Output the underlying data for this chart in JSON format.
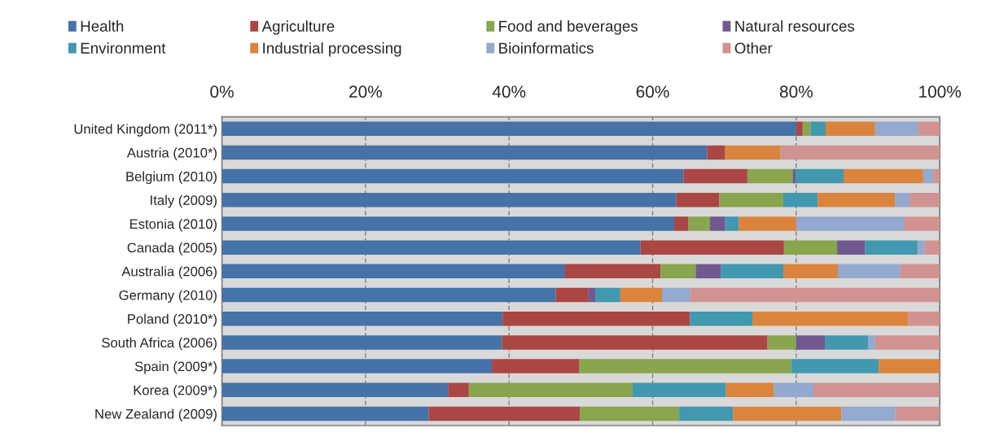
{
  "chart_data": {
    "type": "bar",
    "orientation": "horizontal",
    "stacked": true,
    "categories": [
      "United Kingdom (2011*)",
      "Austria (2010*)",
      "Belgium (2010)",
      "Italy (2009)",
      "Estonia (2010)",
      "Canada (2005)",
      "Australia (2006)",
      "Germany (2010)",
      "Poland (2010*)",
      "South Africa (2006)",
      "Spain (2009*)",
      "Korea (2009*)",
      "New Zealand (2009)"
    ],
    "series": [
      {
        "name": "Health",
        "color": "#4572a7",
        "values": [
          80.0,
          67.6,
          64.3,
          63.3,
          63.0,
          58.3,
          47.8,
          46.5,
          39.1,
          39.0,
          37.6,
          31.5,
          28.8
        ]
      },
      {
        "name": "Agriculture",
        "color": "#aa4643",
        "values": [
          0.9,
          2.5,
          8.9,
          6.0,
          2.0,
          20.0,
          13.3,
          4.5,
          26.1,
          37.0,
          12.2,
          2.9,
          21.1
        ]
      },
      {
        "name": "Food and beverages",
        "color": "#89a54e",
        "values": [
          1.1,
          0,
          6.3,
          8.9,
          3.0,
          7.4,
          4.9,
          0,
          0,
          4.0,
          29.5,
          22.8,
          13.8
        ]
      },
      {
        "name": "Natural resources",
        "color": "#71588f",
        "values": [
          0,
          0,
          0.4,
          0,
          2.1,
          3.9,
          3.5,
          1.0,
          0,
          4.0,
          0,
          0,
          0
        ]
      },
      {
        "name": "Environment",
        "color": "#4198af",
        "values": [
          2.1,
          0,
          6.7,
          4.8,
          1.9,
          7.3,
          8.7,
          3.5,
          8.7,
          6.0,
          12.2,
          13.0,
          7.5
        ]
      },
      {
        "name": "Industrial processing",
        "color": "#db843d",
        "values": [
          6.9,
          7.7,
          11.1,
          10.8,
          8.0,
          0,
          7.6,
          5.8,
          21.7,
          0,
          8.5,
          6.7,
          15.1
        ]
      },
      {
        "name": "Bioinformatics",
        "color": "#93a9cf",
        "values": [
          6.0,
          0,
          1.4,
          2.0,
          15.0,
          1.0,
          8.7,
          3.9,
          0,
          1.0,
          0,
          5.5,
          7.5
        ]
      },
      {
        "name": "Other",
        "color": "#d19392",
        "values": [
          3.0,
          22.2,
          0.9,
          4.2,
          5.0,
          2.1,
          5.5,
          34.8,
          4.4,
          9.0,
          0,
          17.6,
          6.2
        ]
      }
    ],
    "xlim": [
      0,
      100
    ],
    "xticks": [
      {
        "value": 0,
        "label": "0%"
      },
      {
        "value": 20,
        "label": "20%"
      },
      {
        "value": 40,
        "label": "40%"
      },
      {
        "value": 60,
        "label": "60%"
      },
      {
        "value": 80,
        "label": "80%"
      },
      {
        "value": 100,
        "label": "100%"
      }
    ],
    "grid": "x",
    "legend": "top"
  }
}
